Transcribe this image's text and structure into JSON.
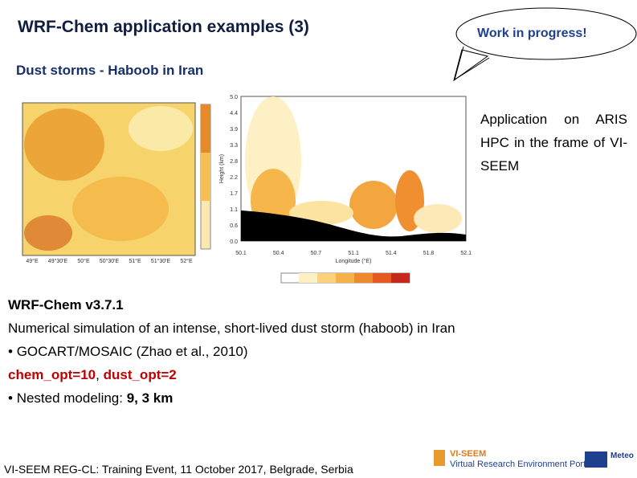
{
  "header": {
    "title": "WRF-Chem application examples (3)",
    "callout": "Work in progress!"
  },
  "subtitle": "Dust storms - Haboob in Iran",
  "figure": {
    "map_lon_labels": [
      "49°E",
      "49°30'E",
      "50°E",
      "50°30'E",
      "51°E",
      "51°30'E",
      "52°E"
    ],
    "section_y_label": "Height (km)",
    "section_x_label": "Longitude (°E)",
    "section_y_ticks": [
      "5.0",
      "4.4",
      "3.9",
      "3.3",
      "2.8",
      "2.2",
      "1.7",
      "1.1",
      "0.6",
      "0.0"
    ],
    "section_x_ticks": [
      "50.1",
      "50.4",
      "50.7",
      "51.1",
      "51.4",
      "51.8",
      "52.1"
    ]
  },
  "side_note": "Application on ARIS HPC in the frame of VI-SEEM",
  "body": {
    "version": "WRF-Chem v3.7.1",
    "description": "Numerical simulation of an intense, short-lived dust storm (haboob) in Iran",
    "bullet_1": "GOCART/MOSAIC (Zhao et al., 2010)",
    "options": [
      "chem_opt=10",
      ", ",
      "dust_opt=2"
    ],
    "bullet_2": [
      "Nested modeling: ",
      "9, 3 km"
    ]
  },
  "footer": {
    "text": "VI-SEEM REG-CL: Training Event, 11 October 2017, Belgrade, Serbia",
    "logo_1": "VI-SEEM",
    "logo_2": "Virtual Research Environment Portal",
    "logo_3": "Meteo"
  }
}
